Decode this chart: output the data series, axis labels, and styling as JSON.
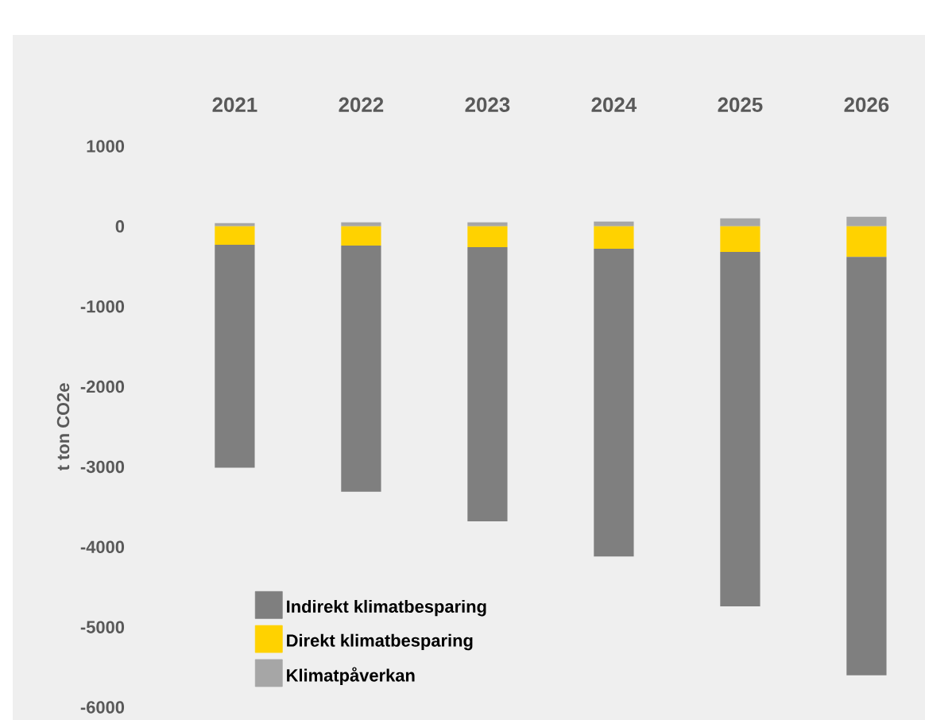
{
  "chart_data": {
    "type": "bar",
    "stacked": true,
    "ylabel": "t ton CO2e",
    "categories": [
      "2021",
      "2022",
      "2023",
      "2024",
      "2025",
      "2026"
    ],
    "series": [
      {
        "name": "Klimatpåverkan",
        "color": "#a6a6a6",
        "values": [
          40,
          50,
          50,
          60,
          100,
          120
        ]
      },
      {
        "name": "Direkt klimatbesparing",
        "color": "#ffd200",
        "values": [
          -230,
          -240,
          -260,
          -280,
          -320,
          -380
        ]
      },
      {
        "name": "Indirekt klimatbesparing",
        "color": "#7f7f7f",
        "values": [
          -2780,
          -3070,
          -3420,
          -3840,
          -4420,
          -5220
        ]
      }
    ],
    "ylim": [
      -6000,
      1000
    ],
    "yticks": [
      -6000,
      -5000,
      -4000,
      -3000,
      -2000,
      -1000,
      0,
      1000
    ],
    "grid": false,
    "legend": "bottom left"
  }
}
